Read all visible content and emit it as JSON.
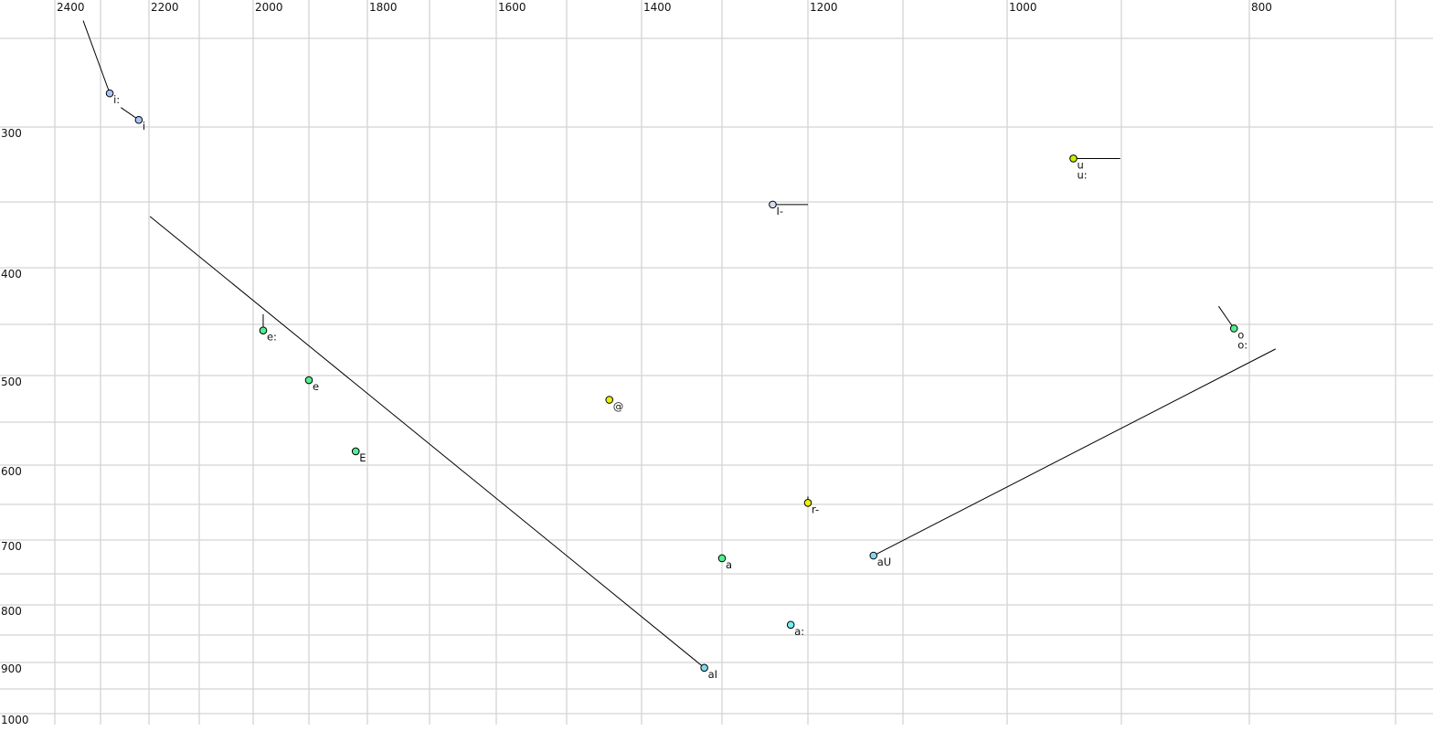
{
  "chart_data": {
    "type": "scatter",
    "title": "",
    "xlabel": "",
    "ylabel": "",
    "x_axis": {
      "reversed": true,
      "scale": "nonlinear",
      "range": [
        2400,
        700
      ],
      "tick_labels": [
        "2400",
        "2200",
        "2000",
        "1800",
        "1600",
        "1400",
        "1200",
        "1000",
        "800"
      ],
      "grid_step": 100
    },
    "y_axis": {
      "reversed": true,
      "scale": "nonlinear",
      "range": [
        250,
        1000
      ],
      "tick_labels": [
        "300",
        "400",
        "500",
        "600",
        "700",
        "800",
        "900",
        "1000"
      ],
      "grid_step": 50
    },
    "grid": true,
    "points": [
      {
        "labels": [
          "i:"
        ],
        "f2": 2281,
        "f1": 281,
        "color": "#a8c4f4",
        "traj_from": [
          2338,
          240
        ]
      },
      {
        "labels": [
          "i"
        ],
        "f2": 2221,
        "f1": 296,
        "color": "#a8c4f4",
        "traj_from": [
          2258,
          289
        ]
      },
      {
        "labels": [
          "u",
          "u:"
        ],
        "f2": 942,
        "f1": 321,
        "color": "#c8f000",
        "traj_to": [
          901,
          321
        ]
      },
      {
        "labels": [
          "I-"
        ],
        "f2": 1241,
        "f1": 352,
        "color": "#d8dcf0",
        "traj_to": [
          1200,
          352
        ]
      },
      {
        "labels": [
          "o",
          "o:"
        ],
        "f2": 812,
        "f1": 454,
        "color": "#50f090",
        "traj_from": [
          824,
          434
        ]
      },
      {
        "labels": [
          "e:"
        ],
        "f2": 1982,
        "f1": 456,
        "color": "#50f090",
        "traj_from": [
          1982,
          441
        ]
      },
      {
        "labels": [
          "e"
        ],
        "f2": 1900,
        "f1": 505,
        "color": "#50f090"
      },
      {
        "labels": [
          "E"
        ],
        "f2": 1820,
        "f1": 584,
        "color": "#50f090"
      },
      {
        "labels": [
          "@"
        ],
        "f2": 1443,
        "f1": 526,
        "color": "#e8f000"
      },
      {
        "labels": [
          "r-"
        ],
        "f2": 1200,
        "f1": 648,
        "color": "#f0f000",
        "traj_from": [
          1200,
          640
        ]
      },
      {
        "labels": [
          "a"
        ],
        "f2": 1300,
        "f1": 727,
        "color": "#50f090"
      },
      {
        "labels": [
          "aU"
        ],
        "f2": 1131,
        "f1": 723,
        "color": "#80d8f0",
        "traj_to": [
          782,
          474
        ]
      },
      {
        "labels": [
          "a:"
        ],
        "f2": 1220,
        "f1": 833,
        "color": "#70f0f0"
      },
      {
        "labels": [
          "aI"
        ],
        "f2": 1322,
        "f1": 910,
        "color": "#80d8f0",
        "traj_from": [
          2198,
          361
        ]
      }
    ]
  }
}
